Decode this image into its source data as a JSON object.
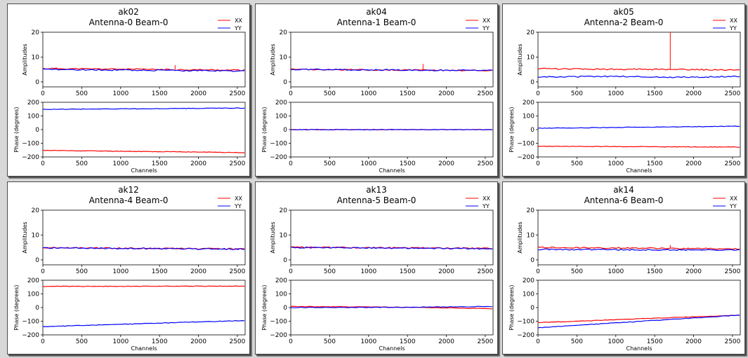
{
  "chart_data": [
    {
      "type": "line",
      "title_line1": "ak02",
      "title_line2": "Antenna-0  Beam-0",
      "legend": [
        "XX",
        "YY"
      ],
      "xlabel": "Channels",
      "amp_ylabel": "Amplitudes",
      "phase_ylabel": "Phase (degrees)",
      "xlim": [
        0,
        2600
      ],
      "x_ticks": [
        "0",
        "500",
        "1000",
        "1500",
        "2000",
        "2500"
      ],
      "amp_ylim": [
        -2,
        20
      ],
      "amp_ticks": [
        "0",
        "10",
        "20"
      ],
      "phase_ylim": [
        -200,
        200
      ],
      "phase_ticks": [
        "200",
        "100",
        "0",
        "−100",
        "−200"
      ],
      "series": [
        {
          "name": "XX",
          "color": "#ff0000",
          "amp": [
            [
              0,
              5.4
            ],
            [
              2592,
              4.7
            ]
          ],
          "amp_spike": [
            1700,
            6.8
          ],
          "phase": [
            [
              0,
              -152
            ],
            [
              2592,
              -168
            ]
          ]
        },
        {
          "name": "YY",
          "color": "#0000ff",
          "amp": [
            [
              0,
              5.0
            ],
            [
              2592,
              4.4
            ]
          ],
          "phase": [
            [
              0,
              148
            ],
            [
              2592,
              158
            ]
          ]
        }
      ]
    },
    {
      "type": "line",
      "title_line1": "ak04",
      "title_line2": "Antenna-1  Beam-0",
      "legend": [
        "XX",
        "YY"
      ],
      "xlabel": "Channels",
      "amp_ylabel": "Amplitudes",
      "phase_ylabel": "Phase (degrees)",
      "xlim": [
        0,
        2600
      ],
      "x_ticks": [
        "0",
        "500",
        "1000",
        "1500",
        "2000",
        "2500"
      ],
      "amp_ylim": [
        -2,
        20
      ],
      "amp_ticks": [
        "0",
        "10",
        "20"
      ],
      "phase_ylim": [
        -200,
        200
      ],
      "phase_ticks": [
        "200",
        "100",
        "0",
        "−100",
        "−200"
      ],
      "series": [
        {
          "name": "XX",
          "color": "#ff0000",
          "amp": [
            [
              0,
              5.0
            ],
            [
              2592,
              4.6
            ]
          ],
          "amp_spike": [
            1700,
            7.2
          ],
          "phase": [
            [
              0,
              0
            ],
            [
              2592,
              0
            ]
          ]
        },
        {
          "name": "YY",
          "color": "#0000ff",
          "amp": [
            [
              0,
              5.0
            ],
            [
              2592,
              4.6
            ]
          ],
          "phase": [
            [
              0,
              0
            ],
            [
              2592,
              0
            ]
          ]
        }
      ]
    },
    {
      "type": "line",
      "title_line1": "ak05",
      "title_line2": "Antenna-2  Beam-0",
      "legend": [
        "XX",
        "YY"
      ],
      "xlabel": "Channels",
      "amp_ylabel": "Amplitudes",
      "phase_ylabel": "Phase (degrees)",
      "xlim": [
        0,
        2600
      ],
      "x_ticks": [
        "0",
        "500",
        "1000",
        "1500",
        "2000",
        "2500"
      ],
      "amp_ylim": [
        -2,
        20
      ],
      "amp_ticks": [
        "0",
        "10",
        "20"
      ],
      "phase_ylim": [
        -200,
        200
      ],
      "phase_ticks": [
        "200",
        "100",
        "0",
        "−100",
        "−200"
      ],
      "series": [
        {
          "name": "XX",
          "color": "#ff0000",
          "amp": [
            [
              0,
              5.3
            ],
            [
              2592,
              4.8
            ]
          ],
          "amp_spike": [
            1700,
            20
          ],
          "phase": [
            [
              0,
              -122
            ],
            [
              2592,
              -128
            ]
          ]
        },
        {
          "name": "YY",
          "color": "#0000ff",
          "amp": [
            [
              0,
              2.0
            ],
            [
              1000,
              2.2
            ],
            [
              1700,
              1.8
            ],
            [
              2592,
              2.2
            ]
          ],
          "phase": [
            [
              0,
              10
            ],
            [
              2592,
              25
            ]
          ]
        }
      ]
    },
    {
      "type": "line",
      "title_line1": "ak12",
      "title_line2": "Antenna-4  Beam-0",
      "legend": [
        "XX",
        "YY"
      ],
      "xlabel": "Channels",
      "amp_ylabel": "Amplitudes",
      "phase_ylabel": "Phase (degrees)",
      "xlim": [
        0,
        2600
      ],
      "x_ticks": [
        "0",
        "500",
        "1000",
        "1500",
        "2000",
        "2500"
      ],
      "amp_ylim": [
        -2,
        20
      ],
      "amp_ticks": [
        "0",
        "10",
        "20"
      ],
      "phase_ylim": [
        -200,
        200
      ],
      "phase_ticks": [
        "200",
        "100",
        "0",
        "−100",
        "−200"
      ],
      "series": [
        {
          "name": "XX",
          "color": "#ff0000",
          "amp": [
            [
              0,
              4.9
            ],
            [
              2592,
              4.4
            ]
          ],
          "phase": [
            [
              0,
              155
            ],
            [
              2592,
              157
            ]
          ]
        },
        {
          "name": "YY",
          "color": "#0000ff",
          "amp": [
            [
              0,
              4.8
            ],
            [
              2592,
              4.3
            ]
          ],
          "phase": [
            [
              0,
              -140
            ],
            [
              2592,
              -95
            ]
          ]
        }
      ]
    },
    {
      "type": "line",
      "title_line1": "ak13",
      "title_line2": "Antenna-5  Beam-0",
      "legend": [
        "XX",
        "YY"
      ],
      "xlabel": "Channels",
      "amp_ylabel": "Amplitudes",
      "phase_ylabel": "Phase (degrees)",
      "xlim": [
        0,
        2600
      ],
      "x_ticks": [
        "0",
        "500",
        "1000",
        "1500",
        "2000",
        "2500"
      ],
      "amp_ylim": [
        -2,
        20
      ],
      "amp_ticks": [
        "0",
        "10",
        "20"
      ],
      "phase_ylim": [
        -200,
        200
      ],
      "phase_ticks": [
        "200",
        "100",
        "0",
        "−100",
        "−200"
      ],
      "series": [
        {
          "name": "XX",
          "color": "#ff0000",
          "amp": [
            [
              0,
              5.1
            ],
            [
              2592,
              4.6
            ]
          ],
          "phase": [
            [
              0,
              8
            ],
            [
              1500,
              2
            ],
            [
              2592,
              -8
            ]
          ]
        },
        {
          "name": "YY",
          "color": "#0000ff",
          "amp": [
            [
              0,
              5.0
            ],
            [
              2592,
              4.5
            ]
          ],
          "phase": [
            [
              0,
              0
            ],
            [
              1500,
              2
            ],
            [
              2592,
              8
            ]
          ]
        }
      ]
    },
    {
      "type": "line",
      "title_line1": "ak14",
      "title_line2": "Antenna-6  Beam-0",
      "legend": [
        "XX",
        "YY"
      ],
      "xlabel": "Channels",
      "amp_ylabel": "Amplitudes",
      "phase_ylabel": "Phase (degrees)",
      "xlim": [
        0,
        2600
      ],
      "x_ticks": [
        "0",
        "500",
        "1000",
        "1500",
        "2000",
        "2500"
      ],
      "amp_ylim": [
        -2,
        20
      ],
      "amp_ticks": [
        "0",
        "10",
        "20"
      ],
      "phase_ylim": [
        -200,
        200
      ],
      "phase_ticks": [
        "200",
        "100",
        "0",
        "−100",
        "−200"
      ],
      "series": [
        {
          "name": "XX",
          "color": "#ff0000",
          "amp": [
            [
              0,
              5.0
            ],
            [
              2592,
              4.4
            ]
          ],
          "amp_spike": [
            1700,
            6.0
          ],
          "phase": [
            [
              0,
              -110
            ],
            [
              2592,
              -55
            ]
          ]
        },
        {
          "name": "YY",
          "color": "#0000ff",
          "amp": [
            [
              0,
              4.2
            ],
            [
              2592,
              3.9
            ]
          ],
          "phase": [
            [
              0,
              -148
            ],
            [
              2592,
              -55
            ]
          ]
        }
      ]
    }
  ]
}
